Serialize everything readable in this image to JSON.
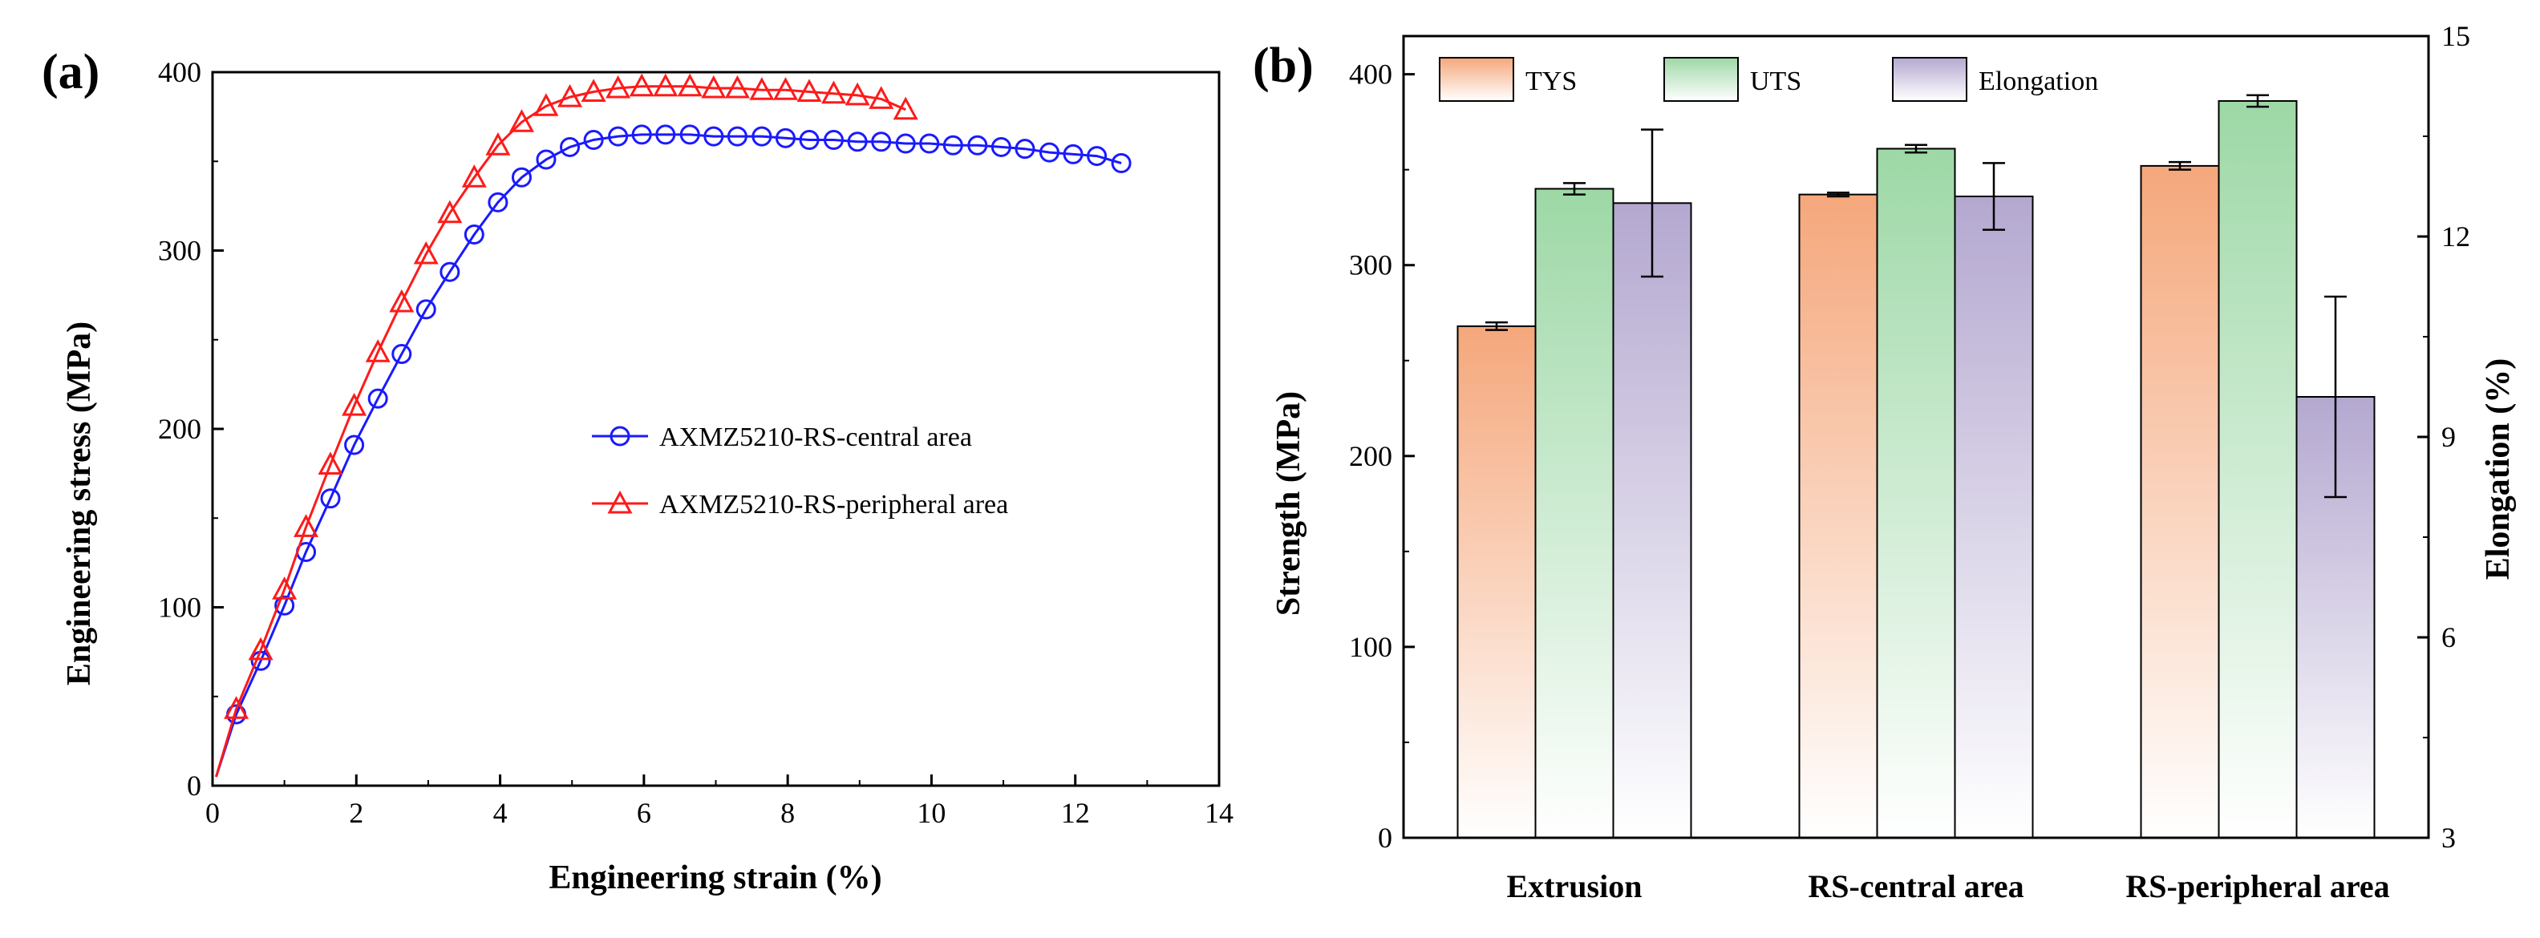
{
  "chart_data": [
    {
      "panel_label": "(a)",
      "type": "line",
      "xlabel": "Engineering strain (%)",
      "ylabel": "Engineering stress (MPa)",
      "xlim": [
        0,
        14
      ],
      "ylim": [
        0,
        400
      ],
      "xticks": [
        "0",
        "2",
        "4",
        "6",
        "8",
        "10",
        "12",
        "14"
      ],
      "yticks": [
        "0",
        "100",
        "200",
        "300",
        "400"
      ],
      "legend_position": "center-right",
      "series": [
        {
          "name": "AXMZ5210-RS-central area",
          "color": "#1a1aff",
          "marker": "circle",
          "x": [
            0.05,
            0.33,
            0.67,
            1.0,
            1.3,
            1.64,
            1.97,
            2.3,
            2.63,
            2.97,
            3.3,
            3.64,
            3.97,
            4.3,
            4.64,
            4.97,
            5.3,
            5.64,
            5.97,
            6.3,
            6.64,
            6.97,
            7.3,
            7.64,
            7.97,
            8.3,
            8.64,
            8.97,
            9.3,
            9.64,
            9.97,
            10.3,
            10.64,
            10.97,
            11.3,
            11.64,
            11.97,
            12.3,
            12.64
          ],
          "y": [
            5,
            40,
            70,
            101,
            131,
            161,
            191,
            217,
            242,
            267,
            288,
            309,
            327,
            341,
            351,
            358,
            362,
            364,
            365,
            365,
            365,
            364,
            364,
            364,
            363,
            362,
            362,
            361,
            361,
            360,
            360,
            359,
            359,
            358,
            357,
            355,
            354,
            353,
            349
          ]
        },
        {
          "name": "AXMZ5210-RS-peripheral area",
          "color": "#ff1a1a",
          "marker": "triangle",
          "x": [
            0.05,
            0.33,
            0.67,
            1.0,
            1.3,
            1.64,
            1.97,
            2.3,
            2.63,
            2.97,
            3.3,
            3.64,
            3.97,
            4.3,
            4.64,
            4.97,
            5.3,
            5.64,
            5.97,
            6.3,
            6.64,
            6.97,
            7.3,
            7.64,
            7.97,
            8.3,
            8.64,
            8.97,
            9.3,
            9.64
          ],
          "y": [
            5,
            43,
            76,
            110,
            145,
            180,
            213,
            243,
            271,
            298,
            321,
            341,
            359,
            372,
            381,
            386,
            389,
            391,
            392,
            392,
            392,
            391,
            391,
            390,
            390,
            389,
            388,
            387,
            385,
            379
          ]
        }
      ]
    },
    {
      "panel_label": "(b)",
      "type": "bar",
      "ylabel": "Strength (MPa)",
      "y2label": "Elongation (%)",
      "categories": [
        "Extrusion",
        "RS-central area",
        "RS-peripheral area"
      ],
      "ylim": [
        0,
        420
      ],
      "y2lim": [
        3,
        15
      ],
      "yticks": [
        "0",
        "100",
        "200",
        "300",
        "400"
      ],
      "y2ticks": [
        "3",
        "6",
        "9",
        "12",
        "15"
      ],
      "legend_position": "top",
      "series": [
        {
          "name": "TYS",
          "axis": "left",
          "color": "#f5a77b",
          "values": [
            268,
            337,
            352
          ],
          "errors": [
            2,
            1,
            2
          ]
        },
        {
          "name": "UTS",
          "axis": "left",
          "color": "#9dd8a6",
          "values": [
            340,
            361,
            386
          ],
          "errors": [
            3,
            2,
            3
          ]
        },
        {
          "name": "Elongation",
          "axis": "right",
          "color": "#b4a8d0",
          "values": [
            12.5,
            12.6,
            9.6
          ],
          "errors": [
            1.1,
            0.5,
            1.5
          ]
        }
      ]
    }
  ]
}
